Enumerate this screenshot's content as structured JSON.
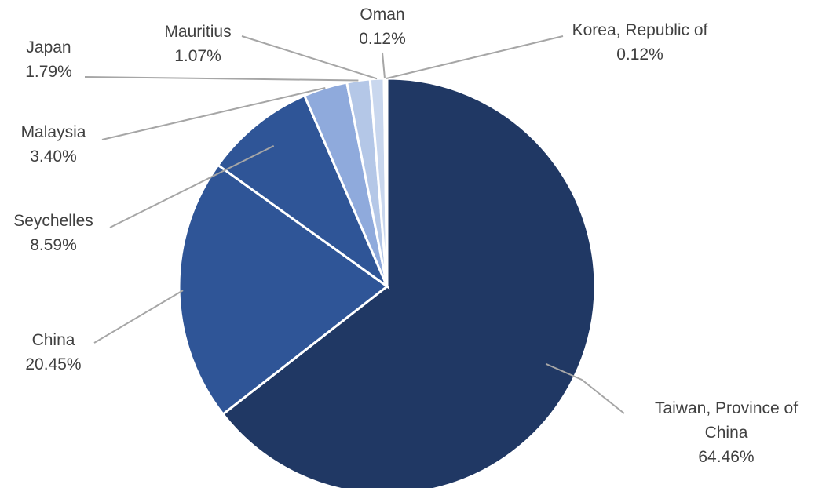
{
  "chart_data": {
    "type": "pie",
    "title": "",
    "slices": [
      {
        "label": "Taiwan, Province of China",
        "label_lines": [
          "Taiwan, Province of",
          "China"
        ],
        "value_label": "64.46%",
        "value": 64.46,
        "color": "#203864"
      },
      {
        "label": "China",
        "label_lines": [
          "China"
        ],
        "value_label": "20.45%",
        "value": 20.45,
        "color": "#2f5597"
      },
      {
        "label": "Seychelles",
        "label_lines": [
          "Seychelles"
        ],
        "value_label": "8.59%",
        "value": 8.59,
        "color": "#2f5597"
      },
      {
        "label": "Malaysia",
        "label_lines": [
          "Malaysia"
        ],
        "value_label": "3.40%",
        "value": 3.4,
        "color": "#8faadc"
      },
      {
        "label": "Japan",
        "label_lines": [
          "Japan"
        ],
        "value_label": "1.79%",
        "value": 1.79,
        "color": "#b4c7e7"
      },
      {
        "label": "Mauritius",
        "label_lines": [
          "Mauritius"
        ],
        "value_label": "1.07%",
        "value": 1.07,
        "color": "#c9d7ee"
      },
      {
        "label": "Oman",
        "label_lines": [
          "Oman"
        ],
        "value_label": "0.12%",
        "value": 0.12,
        "color": "#dae3f3"
      },
      {
        "label": "Korea, Republic of",
        "label_lines": [
          "Korea, Republic of"
        ],
        "value_label": "0.12%",
        "value": 0.12,
        "color": "#e3eaf6"
      }
    ],
    "start_angle": "12 o'clock",
    "direction": "clockwise",
    "legend": "none (data labels with leader lines)"
  }
}
